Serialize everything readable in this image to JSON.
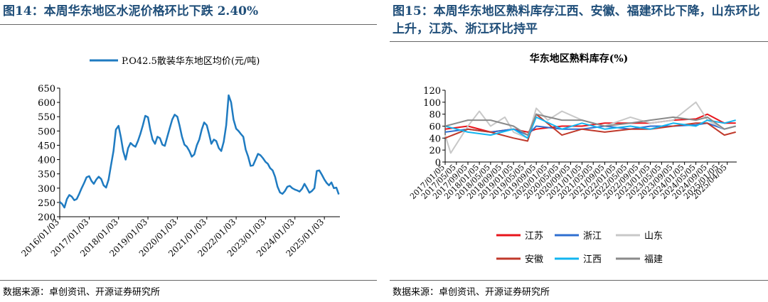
{
  "left": {
    "title": "图14：本周华东地区水泥价格环比下跌 2.40%",
    "source": "数据来源：卓创资讯、开源证券研究所",
    "chart_data": {
      "type": "line",
      "series": [
        {
          "name": "P.O42.5散装华东地区均价(元/吨)",
          "color": "#1f7bc1",
          "points": [
            [
              "2016-01-03",
              252
            ],
            [
              "2016-02-01",
              245
            ],
            [
              "2016-03-01",
              232
            ],
            [
              "2016-04-01",
              262
            ],
            [
              "2016-05-01",
              276
            ],
            [
              "2016-06-01",
              270
            ],
            [
              "2016-07-01",
              258
            ],
            [
              "2016-08-01",
              262
            ],
            [
              "2016-09-01",
              280
            ],
            [
              "2016-10-01",
              300
            ],
            [
              "2016-11-01",
              318
            ],
            [
              "2016-12-01",
              338
            ],
            [
              "2017-01-03",
              342
            ],
            [
              "2017-02-01",
              325
            ],
            [
              "2017-03-01",
              315
            ],
            [
              "2017-04-01",
              330
            ],
            [
              "2017-05-01",
              340
            ],
            [
              "2017-06-01",
              332
            ],
            [
              "2017-07-01",
              310
            ],
            [
              "2017-08-01",
              302
            ],
            [
              "2017-09-01",
              330
            ],
            [
              "2017-10-01",
              380
            ],
            [
              "2017-11-01",
              430
            ],
            [
              "2017-12-01",
              505
            ],
            [
              "2018-01-03",
              518
            ],
            [
              "2018-02-01",
              478
            ],
            [
              "2018-03-01",
              430
            ],
            [
              "2018-04-01",
              400
            ],
            [
              "2018-05-01",
              440
            ],
            [
              "2018-06-01",
              458
            ],
            [
              "2018-07-01",
              450
            ],
            [
              "2018-08-01",
              445
            ],
            [
              "2018-09-01",
              465
            ],
            [
              "2018-10-01",
              490
            ],
            [
              "2018-11-01",
              520
            ],
            [
              "2018-12-01",
              553
            ],
            [
              "2019-01-03",
              548
            ],
            [
              "2019-02-01",
              505
            ],
            [
              "2019-03-01",
              470
            ],
            [
              "2019-04-01",
              455
            ],
            [
              "2019-05-01",
              480
            ],
            [
              "2019-06-01",
              475
            ],
            [
              "2019-07-01",
              452
            ],
            [
              "2019-08-01",
              448
            ],
            [
              "2019-09-01",
              480
            ],
            [
              "2019-10-01",
              510
            ],
            [
              "2019-11-01",
              540
            ],
            [
              "2019-12-01",
              557
            ],
            [
              "2020-01-03",
              550
            ],
            [
              "2020-02-01",
              518
            ],
            [
              "2020-03-01",
              480
            ],
            [
              "2020-04-01",
              452
            ],
            [
              "2020-05-01",
              445
            ],
            [
              "2020-06-01",
              430
            ],
            [
              "2020-07-01",
              410
            ],
            [
              "2020-08-01",
              418
            ],
            [
              "2020-09-01",
              450
            ],
            [
              "2020-10-01",
              470
            ],
            [
              "2020-11-01",
              505
            ],
            [
              "2020-12-01",
              530
            ],
            [
              "2021-01-03",
              520
            ],
            [
              "2021-02-01",
              488
            ],
            [
              "2021-03-01",
              455
            ],
            [
              "2021-04-01",
              470
            ],
            [
              "2021-05-01",
              465
            ],
            [
              "2021-06-01",
              440
            ],
            [
              "2021-07-01",
              430
            ],
            [
              "2021-08-01",
              462
            ],
            [
              "2021-09-01",
              520
            ],
            [
              "2021-10-01",
              625
            ],
            [
              "2021-11-01",
              600
            ],
            [
              "2021-12-01",
              540
            ],
            [
              "2022-01-03",
              508
            ],
            [
              "2022-02-01",
              500
            ],
            [
              "2022-03-01",
              490
            ],
            [
              "2022-04-01",
              480
            ],
            [
              "2022-05-01",
              435
            ],
            [
              "2022-06-01",
              410
            ],
            [
              "2022-07-01",
              378
            ],
            [
              "2022-08-01",
              380
            ],
            [
              "2022-09-01",
              400
            ],
            [
              "2022-10-01",
              420
            ],
            [
              "2022-11-01",
              415
            ],
            [
              "2022-12-01",
              405
            ],
            [
              "2023-01-03",
              392
            ],
            [
              "2023-02-01",
              385
            ],
            [
              "2023-03-01",
              370
            ],
            [
              "2023-04-01",
              362
            ],
            [
              "2023-05-01",
              340
            ],
            [
              "2023-06-01",
              305
            ],
            [
              "2023-07-01",
              285
            ],
            [
              "2023-08-01",
              280
            ],
            [
              "2023-09-01",
              290
            ],
            [
              "2023-10-01",
              305
            ],
            [
              "2023-11-01",
              308
            ],
            [
              "2023-12-01",
              300
            ],
            [
              "2024-01-03",
              295
            ],
            [
              "2024-02-01",
              292
            ],
            [
              "2024-03-01",
              288
            ],
            [
              "2024-04-01",
              298
            ],
            [
              "2024-05-01",
              315
            ],
            [
              "2024-06-01",
              300
            ],
            [
              "2024-07-01",
              284
            ],
            [
              "2024-08-01",
              290
            ],
            [
              "2024-09-01",
              300
            ],
            [
              "2024-10-01",
              360
            ],
            [
              "2024-11-01",
              362
            ],
            [
              "2024-12-01",
              348
            ],
            [
              "2025-01-03",
              330
            ],
            [
              "2025-02-01",
              318
            ],
            [
              "2025-03-01",
              310
            ],
            [
              "2025-04-01",
              320
            ],
            [
              "2025-05-01",
              300
            ],
            [
              "2025-06-01",
              302
            ],
            [
              "2025-07-01",
              278
            ]
          ]
        }
      ],
      "ylim": [
        200,
        650
      ],
      "yticks": [
        200,
        250,
        300,
        350,
        400,
        450,
        500,
        550,
        600,
        650
      ],
      "xlim": [
        "2016-01-03",
        "2025-07-15"
      ],
      "xticks": [
        "2016/01/03",
        "2017/01/03",
        "2018/01/03",
        "2019/01/03",
        "2020/01/03",
        "2021/01/03",
        "2022/01/03",
        "2023/01/03",
        "2024/01/03",
        "2025/01/03"
      ],
      "legend": "top"
    }
  },
  "right": {
    "title": "图15：本周华东地区熟料库存江西、安徽、福建环比下降，山东环比上升，江苏、浙江环比持平",
    "chart_title": "华东地区熟料库存(%)",
    "source": "数据来源：卓创资讯、开源证券研究所",
    "chart_data": {
      "type": "line",
      "ylim": [
        0,
        120
      ],
      "yticks": [
        0,
        20,
        40,
        60,
        80,
        100,
        120
      ],
      "xlim": [
        "2017-01-05",
        "2025-07-15"
      ],
      "xticks": [
        "2017/01/05",
        "2017/05/05",
        "2017/09/05",
        "2018/01/05",
        "2018/05/05",
        "2018/09/05",
        "2019/01/05",
        "2019/05/05",
        "2019/09/05",
        "2020/01/05",
        "2020/05/05",
        "2020/09/05",
        "2021/01/05",
        "2021/05/05",
        "2021/09/05",
        "2022/01/05",
        "2022/05/05",
        "2022/09/05",
        "2023/01/05",
        "2023/05/05",
        "2023/09/05",
        "2024/01/05",
        "2024/05/05",
        "2024/09/05",
        "2025/01/05",
        "2025/04/05"
      ],
      "legend": "bottom",
      "series": [
        {
          "name": "江苏",
          "color": "#e8141b",
          "points": [
            [
              "2017-01-05",
              55
            ],
            [
              "2017-09-05",
              60
            ],
            [
              "2018-05-05",
              50
            ],
            [
              "2019-01-05",
              55
            ],
            [
              "2019-06-05",
              50
            ],
            [
              "2019-09-05",
              55
            ],
            [
              "2020-06-05",
              60
            ],
            [
              "2021-01-05",
              60
            ],
            [
              "2021-09-05",
              65
            ],
            [
              "2022-06-05",
              65
            ],
            [
              "2023-01-05",
              65
            ],
            [
              "2023-09-05",
              70
            ],
            [
              "2024-05-05",
              72
            ],
            [
              "2024-09-05",
              80
            ],
            [
              "2025-03-05",
              65
            ],
            [
              "2025-07-05",
              65
            ]
          ]
        },
        {
          "name": "浙江",
          "color": "#2f6fd0",
          "points": [
            [
              "2017-01-05",
              50
            ],
            [
              "2017-09-05",
              55
            ],
            [
              "2018-05-05",
              50
            ],
            [
              "2019-01-05",
              55
            ],
            [
              "2019-06-05",
              45
            ],
            [
              "2019-09-05",
              60
            ],
            [
              "2020-06-05",
              55
            ],
            [
              "2021-01-05",
              55
            ],
            [
              "2021-09-05",
              60
            ],
            [
              "2022-06-05",
              55
            ],
            [
              "2023-01-05",
              60
            ],
            [
              "2023-09-05",
              60
            ],
            [
              "2024-05-05",
              62
            ],
            [
              "2024-09-05",
              65
            ],
            [
              "2025-03-05",
              55
            ],
            [
              "2025-07-05",
              60
            ]
          ]
        },
        {
          "name": "山东",
          "color": "#c8c8c8",
          "points": [
            [
              "2017-01-05",
              45
            ],
            [
              "2017-03-05",
              15
            ],
            [
              "2017-09-05",
              60
            ],
            [
              "2018-01-05",
              85
            ],
            [
              "2018-05-05",
              60
            ],
            [
              "2018-10-05",
              75
            ],
            [
              "2019-01-05",
              50
            ],
            [
              "2019-06-05",
              40
            ],
            [
              "2019-09-05",
              90
            ],
            [
              "2020-01-05",
              70
            ],
            [
              "2020-06-05",
              85
            ],
            [
              "2021-01-05",
              70
            ],
            [
              "2021-09-05",
              60
            ],
            [
              "2022-06-05",
              75
            ],
            [
              "2023-01-05",
              65
            ],
            [
              "2023-09-05",
              70
            ],
            [
              "2024-05-05",
              100
            ],
            [
              "2024-09-05",
              70
            ],
            [
              "2025-03-05",
              55
            ],
            [
              "2025-07-05",
              60
            ]
          ]
        },
        {
          "name": "安徽",
          "color": "#c0392b",
          "points": [
            [
              "2017-01-05",
              40
            ],
            [
              "2017-09-05",
              55
            ],
            [
              "2018-05-05",
              50
            ],
            [
              "2019-01-05",
              40
            ],
            [
              "2019-06-05",
              35
            ],
            [
              "2019-09-05",
              80
            ],
            [
              "2020-06-05",
              45
            ],
            [
              "2021-01-05",
              55
            ],
            [
              "2021-09-05",
              50
            ],
            [
              "2022-06-05",
              55
            ],
            [
              "2023-01-05",
              55
            ],
            [
              "2023-09-05",
              60
            ],
            [
              "2024-05-05",
              65
            ],
            [
              "2024-09-05",
              65
            ],
            [
              "2025-03-05",
              45
            ],
            [
              "2025-07-05",
              50
            ]
          ]
        },
        {
          "name": "江西",
          "color": "#12b5f0",
          "points": [
            [
              "2017-01-05",
              60
            ],
            [
              "2017-09-05",
              50
            ],
            [
              "2018-05-05",
              45
            ],
            [
              "2019-01-05",
              55
            ],
            [
              "2019-06-05",
              40
            ],
            [
              "2019-09-05",
              75
            ],
            [
              "2020-06-05",
              55
            ],
            [
              "2021-01-05",
              65
            ],
            [
              "2021-09-05",
              55
            ],
            [
              "2022-06-05",
              60
            ],
            [
              "2023-01-05",
              55
            ],
            [
              "2023-09-05",
              65
            ],
            [
              "2024-05-05",
              60
            ],
            [
              "2024-09-05",
              70
            ],
            [
              "2025-03-05",
              65
            ],
            [
              "2025-07-05",
              70
            ]
          ]
        },
        {
          "name": "福建",
          "color": "#8a8a8a",
          "points": [
            [
              "2017-01-05",
              60
            ],
            [
              "2017-09-05",
              70
            ],
            [
              "2018-05-05",
              70
            ],
            [
              "2019-01-05",
              60
            ],
            [
              "2019-06-05",
              45
            ],
            [
              "2019-09-05",
              80
            ],
            [
              "2020-06-05",
              70
            ],
            [
              "2021-01-05",
              70
            ],
            [
              "2021-09-05",
              60
            ],
            [
              "2022-06-05",
              65
            ],
            [
              "2023-01-05",
              70
            ],
            [
              "2023-09-05",
              75
            ],
            [
              "2024-05-05",
              70
            ],
            [
              "2024-09-05",
              75
            ],
            [
              "2025-03-05",
              55
            ],
            [
              "2025-07-05",
              60
            ]
          ]
        }
      ]
    }
  }
}
